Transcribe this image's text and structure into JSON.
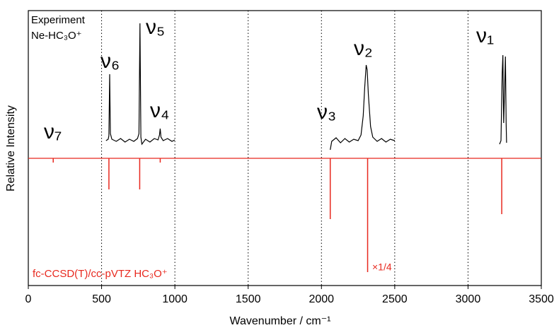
{
  "chart_data": {
    "type": "line",
    "xlabel": "Wavenumber / cm⁻¹",
    "ylabel": "Relative Intensity",
    "xlim": [
      0,
      3500
    ],
    "xticks": [
      0,
      500,
      1000,
      1500,
      2000,
      2500,
      3000,
      3500
    ],
    "ylim": [
      -1.8,
      2.09
    ],
    "grid": true,
    "texts": [
      "Experiment",
      "Ne-HC₃O⁺"
    ],
    "calc_label": "fc-CCSD(T)/cc-pVTZ HC₃O⁺",
    "scale_note": "×1/4",
    "annotations": [
      "ν₇",
      "ν₆",
      "ν₅",
      "ν₄",
      "ν₃",
      "ν₂",
      "ν₁"
    ],
    "series": [
      {
        "name": "Experiment",
        "kind": "line",
        "color": "#000000",
        "x": [
          530,
          545,
          550,
          555,
          560,
          570,
          600,
          630,
          660,
          690,
          720,
          745,
          755,
          762,
          768,
          775,
          800,
          830,
          860,
          885,
          895,
          900,
          905,
          920,
          950,
          980,
          1000,
          null,
          2060,
          2070,
          2100,
          2130,
          2160,
          2190,
          2220,
          2250,
          2270,
          2285,
          2295,
          2305,
          2312,
          2320,
          2335,
          2350,
          2380,
          2410,
          2440,
          2470,
          2500,
          null,
          3215,
          3225,
          3233,
          3238,
          3243,
          3250,
          3255,
          3260,
          3263
        ],
        "values": [
          0.25,
          0.27,
          0.32,
          1.19,
          0.35,
          0.27,
          0.24,
          0.28,
          0.23,
          0.27,
          0.24,
          0.28,
          0.35,
          1.91,
          0.3,
          0.2,
          0.27,
          0.23,
          0.28,
          0.26,
          0.33,
          0.42,
          0.3,
          0.25,
          0.28,
          0.24,
          0.26,
          null,
          0.12,
          0.24,
          0.29,
          0.22,
          0.28,
          0.23,
          0.27,
          0.25,
          0.33,
          0.6,
          1.0,
          1.32,
          1.25,
          0.9,
          0.45,
          0.3,
          0.24,
          0.28,
          0.23,
          0.27,
          0.25,
          null,
          0.2,
          0.25,
          1.2,
          1.46,
          0.5,
          1.0,
          1.44,
          0.5,
          0.22
        ]
      },
      {
        "name": "fc-CCSD(T)/cc-pVTZ",
        "kind": "stick",
        "color": "#e8281e",
        "x": [
          170,
          550,
          760,
          900,
          2060,
          2315,
          3230
        ],
        "values": [
          -0.06,
          -0.44,
          -0.44,
          -0.06,
          -0.86,
          -1.61,
          -0.79
        ]
      }
    ]
  }
}
